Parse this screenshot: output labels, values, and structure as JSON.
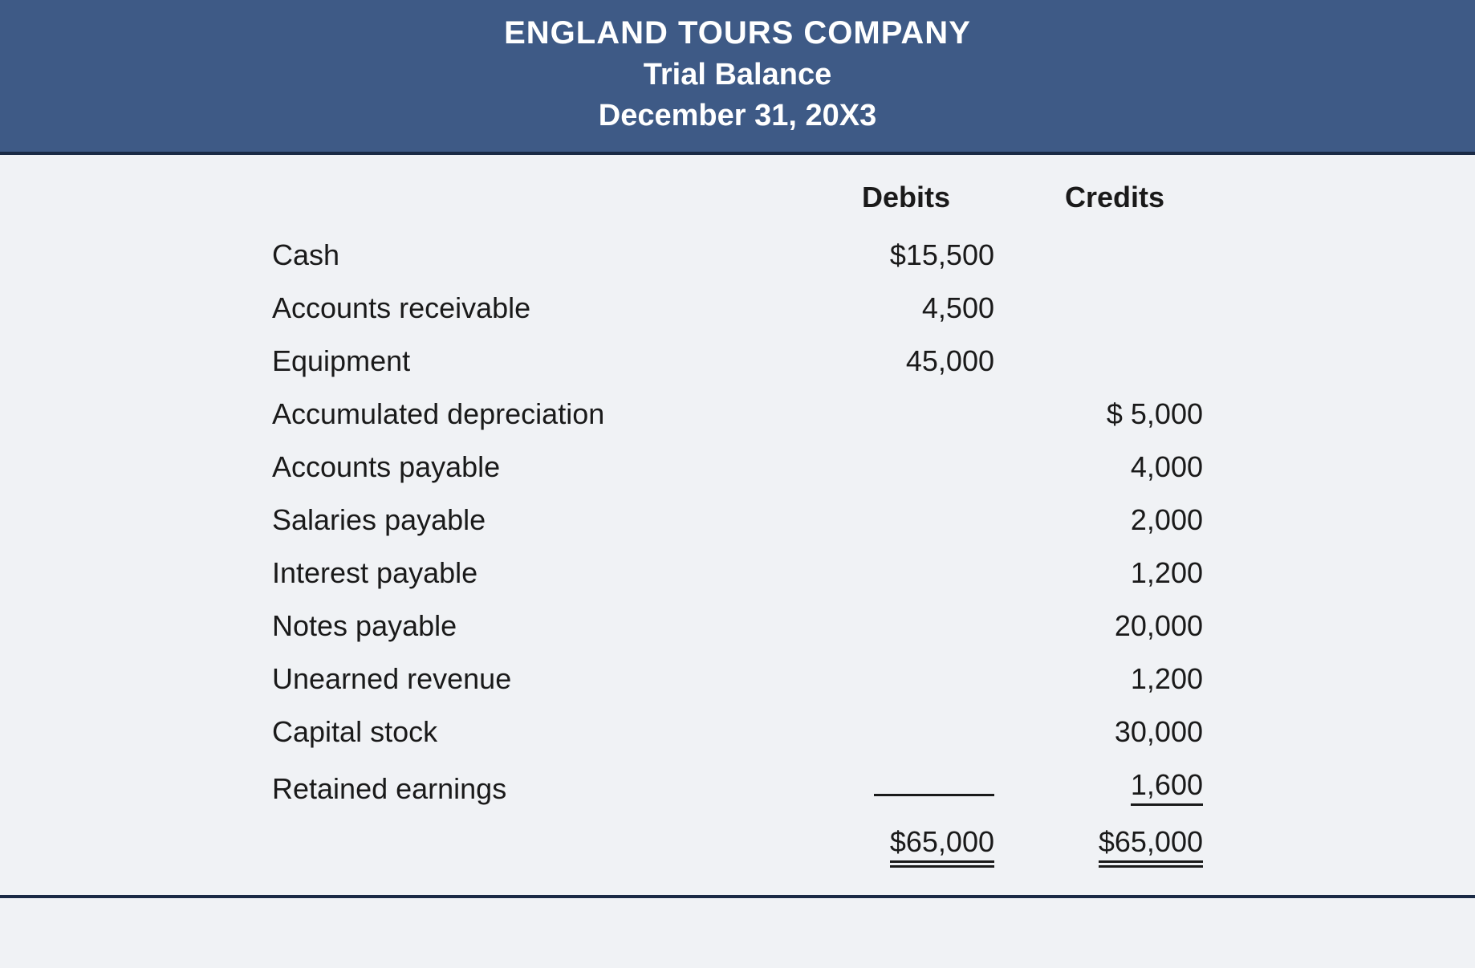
{
  "type": "table",
  "styling": {
    "header_bg": "#3e5a86",
    "header_text_color": "#ffffff",
    "body_bg": "#f0f2f5",
    "text_color": "#1a1a1a",
    "rule_color": "#1a2a45",
    "company_fontsize": 40,
    "subtitle_fontsize": 38,
    "body_fontsize": 36,
    "font_weight_header": 700,
    "column_widths": {
      "account": 720,
      "amount": 260
    }
  },
  "header": {
    "company": "ENGLAND TOURS COMPANY",
    "title": "Trial Balance",
    "date": "December 31, 20X3"
  },
  "columns": {
    "debits": "Debits",
    "credits": "Credits"
  },
  "rows": [
    {
      "account": "Cash",
      "debit": "$15,500",
      "credit": ""
    },
    {
      "account": "Accounts receivable",
      "debit": "4,500",
      "credit": ""
    },
    {
      "account": "Equipment",
      "debit": "45,000",
      "credit": ""
    },
    {
      "account": "Accumulated depreciation",
      "debit": "",
      "credit": "$  5,000"
    },
    {
      "account": "Accounts payable",
      "debit": "",
      "credit": "4,000"
    },
    {
      "account": "Salaries payable",
      "debit": "",
      "credit": "2,000"
    },
    {
      "account": "Interest payable",
      "debit": "",
      "credit": "1,200"
    },
    {
      "account": "Notes payable",
      "debit": "",
      "credit": "20,000"
    },
    {
      "account": "Unearned revenue",
      "debit": "",
      "credit": "1,200"
    },
    {
      "account": "Capital stock",
      "debit": "",
      "credit": "30,000"
    },
    {
      "account": "Retained earnings",
      "debit": "",
      "credit": "1,600"
    }
  ],
  "totals": {
    "debit": "$65,000",
    "credit": "$65,000"
  }
}
